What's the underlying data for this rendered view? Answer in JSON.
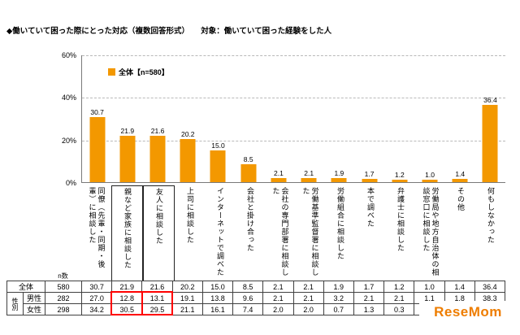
{
  "title": "◆働いていて困った際にとった対応（複数回答形式）　　対象：働いていて困った経験をした人",
  "watermark": "ReseMom",
  "chart_data": {
    "type": "bar",
    "legend": "全体【n=580】",
    "legend_position": "top-left-inside",
    "bar_color": "#F39800",
    "ylim": [
      0,
      60
    ],
    "yticks": [
      "0%",
      "20%",
      "40%",
      "60%"
    ],
    "grid": "dashed-horizontal",
    "categories": [
      "同僚（先輩・同期・後輩）に相談した",
      "親など家族に相談した",
      "友人に相談した",
      "上司に相談した",
      "インターネットで調べた",
      "会社と掛け合った",
      "会社の専門部署に相談した",
      "労働基準監督署に相談した",
      "労働組合に相談した",
      "本で調べた",
      "弁護士に相談した",
      "労働局や地方自治体の相談窓口に相談した",
      "その他",
      "何もしなかった"
    ],
    "values": [
      30.7,
      21.9,
      21.6,
      20.2,
      15.0,
      8.5,
      2.1,
      2.1,
      1.9,
      1.7,
      1.2,
      1.0,
      1.4,
      36.4
    ]
  },
  "table": {
    "n_label": "n数",
    "group_label": "性別",
    "rows": [
      {
        "group": "",
        "label": "全体",
        "n": "580",
        "values": [
          30.7,
          21.9,
          21.6,
          20.2,
          15.0,
          8.5,
          2.1,
          2.1,
          1.9,
          1.7,
          1.2,
          1.0,
          1.4,
          36.4
        ]
      },
      {
        "group": "性別",
        "label": "男性",
        "n": "282",
        "values": [
          27.0,
          12.8,
          13.1,
          19.1,
          13.8,
          9.6,
          2.1,
          2.1,
          3.2,
          2.1,
          2.1,
          1.1,
          1.8,
          38.3
        ]
      },
      {
        "group": "性別",
        "label": "女性",
        "n": "298",
        "values": [
          34.2,
          30.5,
          29.5,
          21.1,
          16.1,
          7.4,
          2.0,
          2.0,
          0.7,
          1.3,
          0.3,
          1.0,
          1.1,
          34.6
        ]
      }
    ]
  },
  "highlights": {
    "boxed_category_indexes": [
      1,
      2
    ],
    "red_box_column_indexes": [
      1,
      2
    ],
    "red_color": "#ff0000"
  }
}
